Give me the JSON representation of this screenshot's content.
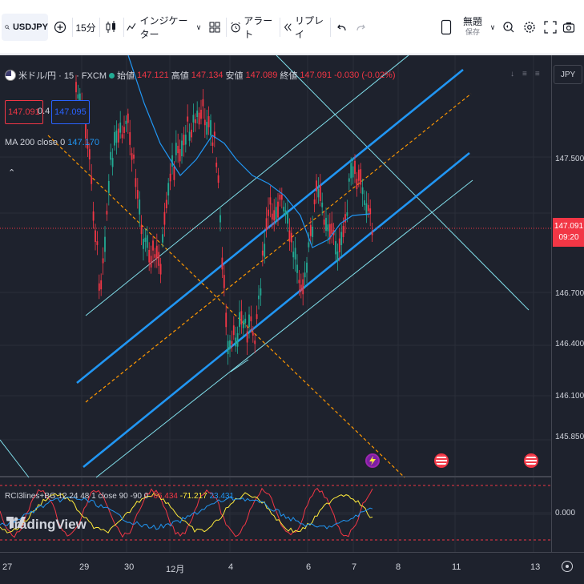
{
  "toolbar": {
    "symbol": "USDJPY",
    "interval": "15分",
    "indicators": "インジケーター",
    "alert": "アラート",
    "replay": "リプレイ",
    "layout_name": "無題",
    "layout_sub": "保存"
  },
  "legend": {
    "title": "米ドル/円 · 15 · FXCM",
    "open_label": "始値",
    "open": "147.121",
    "high_label": "高値",
    "high": "147.134",
    "low_label": "安値",
    "low": "147.089",
    "close_label": "終値",
    "close": "147.091",
    "change": "-0.030 (-0.02%)",
    "sell": "147.091",
    "spread": "0.4",
    "buy": "147.095"
  },
  "ma": {
    "label": "MA 200 close 0",
    "value": "147.170"
  },
  "oscillator": {
    "label": "RCI3lines+BG 12 24 48 1 close 90 -90 0",
    "v1": "-66.434",
    "v2": "-71.217",
    "v3": "23.431",
    "zero": "0.000"
  },
  "price_axis": {
    "currency": "JPY",
    "labels": [
      "147.500",
      "146.700",
      "146.400",
      "146.100",
      "145.850"
    ],
    "current_price": "147.091",
    "countdown": "09:20"
  },
  "time_axis": [
    "27",
    "29",
    "30",
    "12月",
    "4",
    "6",
    "7",
    "8",
    "11",
    "13"
  ],
  "branding": "TradingView",
  "colors": {
    "background": "#1e222d",
    "channel_blue": "#2196f3",
    "channel_light": "#80deea",
    "fib_orange": "#ff9800",
    "down": "#f23645",
    "up": "#22ab94"
  }
}
